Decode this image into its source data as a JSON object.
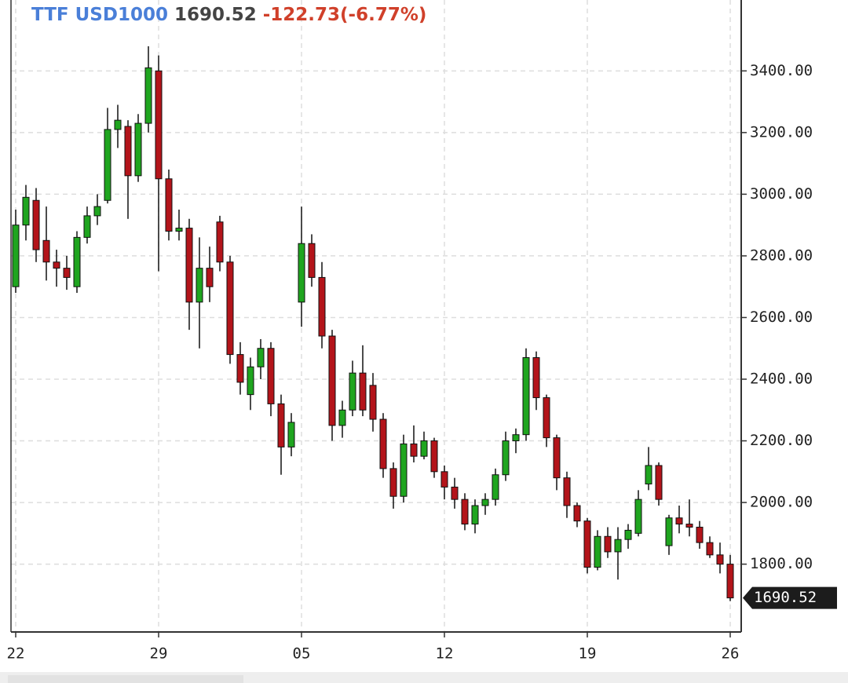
{
  "chart_data": {
    "type": "candlestick",
    "symbol": "TTF USD1000",
    "last": 1690.52,
    "change": "-122.73(-6.77%)",
    "categories": [
      "22",
      null,
      null,
      null,
      null,
      null,
      null,
      null,
      null,
      null,
      null,
      null,
      null,
      null,
      "29",
      null,
      null,
      null,
      null,
      null,
      null,
      null,
      null,
      null,
      null,
      null,
      null,
      null,
      "05",
      null,
      null,
      null,
      null,
      null,
      null,
      null,
      null,
      null,
      null,
      null,
      null,
      null,
      "12",
      null,
      null,
      null,
      null,
      null,
      null,
      null,
      null,
      null,
      null,
      null,
      null,
      null,
      "19",
      null,
      null,
      null,
      null,
      null,
      null,
      null,
      null,
      null,
      null,
      null,
      null,
      null,
      "26"
    ],
    "open": [
      2700,
      2900,
      2980,
      2850,
      2780,
      2760,
      2700,
      2860,
      2930,
      2980,
      3210,
      3220,
      3060,
      3230,
      3400,
      3050,
      2880,
      2890,
      2650,
      2760,
      2910,
      2780,
      2480,
      2350,
      2440,
      2500,
      2320,
      2180,
      2650,
      2840,
      2730,
      2540,
      2250,
      2300,
      2420,
      2380,
      2270,
      2110,
      2020,
      2190,
      2150,
      2200,
      2100,
      2050,
      2010,
      1930,
      1990,
      2010,
      2090,
      2200,
      2220,
      2470,
      2340,
      2210,
      2080,
      1990,
      1940,
      1790,
      1890,
      1840,
      1880,
      1900,
      2060,
      2120,
      1860,
      1950,
      1930,
      1920,
      1870,
      1830,
      1800
    ],
    "high": [
      2950,
      3030,
      3020,
      2960,
      2820,
      2800,
      2880,
      2960,
      3000,
      3280,
      3290,
      3240,
      3260,
      3480,
      3450,
      3080,
      2950,
      2920,
      2860,
      2830,
      2930,
      2800,
      2520,
      2470,
      2530,
      2520,
      2350,
      2290,
      2960,
      2870,
      2780,
      2560,
      2330,
      2460,
      2510,
      2420,
      2290,
      2130,
      2220,
      2250,
      2230,
      2210,
      2120,
      2080,
      2030,
      2010,
      2030,
      2110,
      2230,
      2240,
      2500,
      2490,
      2350,
      2220,
      2100,
      2000,
      1950,
      1910,
      1920,
      1920,
      1930,
      2040,
      2180,
      2130,
      1960,
      1990,
      2010,
      1940,
      1890,
      1870,
      1830
    ],
    "low": [
      2680,
      2850,
      2780,
      2720,
      2700,
      2690,
      2680,
      2840,
      2900,
      2970,
      3150,
      2920,
      3040,
      3200,
      2750,
      2850,
      2850,
      2560,
      2500,
      2650,
      2750,
      2450,
      2350,
      2300,
      2400,
      2280,
      2090,
      2150,
      2570,
      2700,
      2500,
      2200,
      2210,
      2280,
      2280,
      2230,
      2080,
      1980,
      2000,
      2130,
      2140,
      2080,
      2010,
      1980,
      1910,
      1900,
      1960,
      1990,
      2070,
      2160,
      2200,
      2300,
      2180,
      2040,
      1950,
      1920,
      1770,
      1780,
      1820,
      1750,
      1850,
      1890,
      2040,
      1990,
      1830,
      1900,
      1890,
      1850,
      1820,
      1770,
      1680
    ],
    "close": [
      2900,
      2990,
      2820,
      2780,
      2760,
      2730,
      2860,
      2930,
      2960,
      3210,
      3240,
      3060,
      3230,
      3410,
      3050,
      2880,
      2890,
      2650,
      2760,
      2700,
      2780,
      2480,
      2390,
      2440,
      2500,
      2320,
      2180,
      2260,
      2840,
      2730,
      2540,
      2250,
      2300,
      2420,
      2300,
      2270,
      2110,
      2020,
      2190,
      2150,
      2200,
      2100,
      2050,
      2010,
      1930,
      1990,
      2010,
      2090,
      2200,
      2220,
      2470,
      2340,
      2210,
      2080,
      1990,
      1940,
      1790,
      1890,
      1840,
      1880,
      1910,
      2010,
      2120,
      2010,
      1950,
      1930,
      1920,
      1870,
      1830,
      1800,
      1690.52
    ],
    "up_color": "#1fa51f",
    "down_color": "#b3141a",
    "ylim": [
      1580,
      3630
    ],
    "yticks": [
      {
        "value": 1800,
        "label": "1800.00"
      },
      {
        "value": 2000,
        "label": "2000.00"
      },
      {
        "value": 2200,
        "label": "2200.00"
      },
      {
        "value": 2400,
        "label": "2400.00"
      },
      {
        "value": 2600,
        "label": "2600.00"
      },
      {
        "value": 2800,
        "label": "2800.00"
      },
      {
        "value": 3000,
        "label": "3000.00"
      },
      {
        "value": 3200,
        "label": "3200.00"
      },
      {
        "value": 3400,
        "label": "3400.00"
      }
    ],
    "grid": true
  }
}
